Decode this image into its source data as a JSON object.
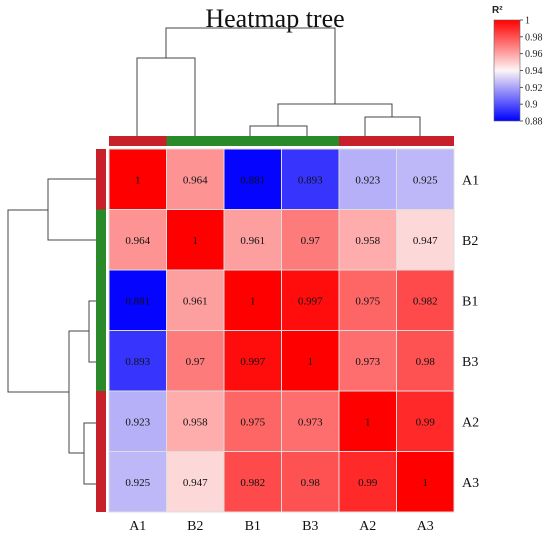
{
  "chart_data": {
    "type": "heatmap",
    "title": "Heatmap tree",
    "rows": [
      "A1",
      "B2",
      "B1",
      "B3",
      "A2",
      "A3"
    ],
    "columns": [
      "A1",
      "B2",
      "B1",
      "B3",
      "A2",
      "A3"
    ],
    "values": [
      [
        1,
        0.964,
        0.881,
        0.893,
        0.923,
        0.925
      ],
      [
        0.964,
        1,
        0.961,
        0.97,
        0.958,
        0.947
      ],
      [
        0.881,
        0.961,
        1,
        0.997,
        0.975,
        0.982
      ],
      [
        0.893,
        0.97,
        0.997,
        1,
        0.973,
        0.98
      ],
      [
        0.923,
        0.958,
        0.975,
        0.973,
        1,
        0.99
      ],
      [
        0.925,
        0.947,
        0.982,
        0.98,
        0.99,
        1
      ]
    ],
    "cell_labels": [
      [
        "1",
        "0.964",
        "0.881",
        "0.893",
        "0.923",
        "0.925"
      ],
      [
        "0.964",
        "1",
        "0.961",
        "0.97",
        "0.958",
        "0.947"
      ],
      [
        "0.881",
        "0.961",
        "1",
        "0.997",
        "0.975",
        "0.982"
      ],
      [
        "0.893",
        "0.97",
        "0.997",
        "1",
        "0.973",
        "0.98"
      ],
      [
        "0.923",
        "0.958",
        "0.975",
        "0.973",
        "1",
        "0.99"
      ],
      [
        "0.925",
        "0.947",
        "0.982",
        "0.98",
        "0.99",
        "1"
      ]
    ],
    "color_scale": {
      "title": "R²",
      "min": 0.88,
      "max": 1,
      "ticks": [
        1,
        0.98,
        0.96,
        0.94,
        0.92,
        0.9,
        0.88
      ],
      "tick_labels": [
        "1",
        "0.98",
        "0.96",
        "0.94",
        "0.92",
        "0.9",
        "0.88"
      ],
      "low_color": "#0000ff",
      "mid_color": "#fdf5f5",
      "high_color": "#ff0000"
    },
    "group_colors": {
      "A": "#c8202a",
      "B": "#2a8a2a"
    },
    "column_groups": [
      "A",
      "B",
      "B",
      "B",
      "A",
      "A"
    ],
    "row_groups": [
      "A",
      "B",
      "B",
      "B",
      "A",
      "A"
    ],
    "dendrogram": "((A1,B2),((B1,B3),(A2,A3)))",
    "legend_position": "top-right"
  }
}
